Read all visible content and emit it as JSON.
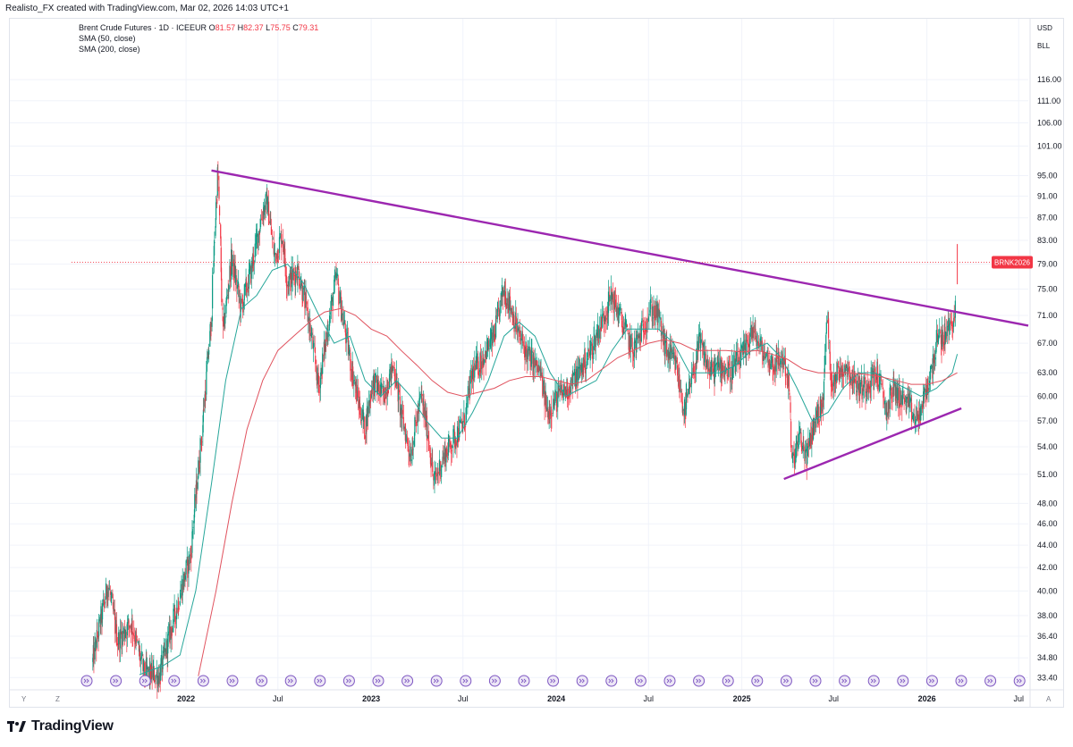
{
  "header": {
    "attribution": "Realisto_FX created with TradingView.com, Mar 02, 2026 14:03 UTC+1"
  },
  "legend": {
    "title": "Brent Crude Futures · 1D · ICEEUR",
    "open_label": "O",
    "open": "81.57",
    "high_label": "H",
    "high": "82.37",
    "low_label": "L",
    "low": "75.75",
    "close_label": "C",
    "close": "79.31",
    "sma1": "SMA (50, close)",
    "sma2": "SMA (200, close)"
  },
  "scale": {
    "currency": "USD",
    "unit": "BLL"
  },
  "price_badge": {
    "symbol": "BRNK2026",
    "color": "#f23645"
  },
  "bottom_toolbar": {
    "y": "Y",
    "z": "Z",
    "a": "A"
  },
  "brand": {
    "name": "TradingView"
  },
  "chart_data": {
    "type": "candlestick",
    "title": "Brent Crude Futures · 1D · ICEEUR",
    "y_scale": "log",
    "ylim": [
      32.8,
      122
    ],
    "y_ticks": [
      "116.00",
      "111.00",
      "106.00",
      "101.00",
      "95.00",
      "91.00",
      "87.00",
      "83.00",
      "79.00",
      "75.00",
      "71.00",
      "67.00",
      "63.00",
      "60.00",
      "57.00",
      "54.00",
      "51.00",
      "48.00",
      "46.00",
      "44.00",
      "42.00",
      "40.00",
      "38.00",
      "36.40",
      "34.80",
      "33.40"
    ],
    "x_ticks": [
      {
        "label": "2022",
        "bold": true,
        "date": "2022-01-01"
      },
      {
        "label": "Jul",
        "bold": false,
        "date": "2022-07-01"
      },
      {
        "label": "2023",
        "bold": true,
        "date": "2023-01-01"
      },
      {
        "label": "Jul",
        "bold": false,
        "date": "2023-07-01"
      },
      {
        "label": "2024",
        "bold": true,
        "date": "2024-01-01"
      },
      {
        "label": "Jul",
        "bold": false,
        "date": "2024-07-01"
      },
      {
        "label": "2025",
        "bold": true,
        "date": "2025-01-01"
      },
      {
        "label": "Jul",
        "bold": false,
        "date": "2025-07-01"
      },
      {
        "label": "2026",
        "bold": true,
        "date": "2026-01-01"
      },
      {
        "label": "Jul",
        "bold": false,
        "date": "2026-07-01"
      }
    ],
    "xlim": [
      "2021-05-20",
      "2026-07-20"
    ],
    "last_price": 79.31,
    "series": [
      {
        "name": "price",
        "color_up": "#089981",
        "color_down": "#f23645",
        "points": [
          [
            "2021-07-01",
            34.5
          ],
          [
            "2021-08-01",
            40.5
          ],
          [
            "2021-08-20",
            36
          ],
          [
            "2021-09-15",
            37.5
          ],
          [
            "2021-10-10",
            33.8
          ],
          [
            "2021-11-10",
            33.5
          ],
          [
            "2021-12-10",
            38
          ],
          [
            "2022-01-10",
            43
          ],
          [
            "2022-02-01",
            55
          ],
          [
            "2022-02-20",
            70
          ],
          [
            "2022-03-05",
            96
          ],
          [
            "2022-03-15",
            68
          ],
          [
            "2022-04-01",
            80
          ],
          [
            "2022-04-20",
            72
          ],
          [
            "2022-05-10",
            78
          ],
          [
            "2022-06-01",
            88
          ],
          [
            "2022-06-10",
            90
          ],
          [
            "2022-06-25",
            80
          ],
          [
            "2022-07-10",
            84
          ],
          [
            "2022-07-20",
            76
          ],
          [
            "2022-08-10",
            78
          ],
          [
            "2022-09-01",
            70
          ],
          [
            "2022-09-20",
            61
          ],
          [
            "2022-10-10",
            70
          ],
          [
            "2022-10-25",
            77
          ],
          [
            "2022-11-01",
            73
          ],
          [
            "2022-11-20",
            65
          ],
          [
            "2022-12-05",
            60
          ],
          [
            "2022-12-20",
            56
          ],
          [
            "2023-01-05",
            62
          ],
          [
            "2023-01-25",
            60
          ],
          [
            "2023-02-15",
            64
          ],
          [
            "2023-03-01",
            58
          ],
          [
            "2023-03-20",
            53
          ],
          [
            "2023-04-10",
            60
          ],
          [
            "2023-04-25",
            55
          ],
          [
            "2023-05-05",
            50
          ],
          [
            "2023-05-25",
            53
          ],
          [
            "2023-06-15",
            55
          ],
          [
            "2023-07-05",
            57
          ],
          [
            "2023-07-20",
            63
          ],
          [
            "2023-08-10",
            65
          ],
          [
            "2023-09-01",
            68
          ],
          [
            "2023-09-20",
            75
          ],
          [
            "2023-10-05",
            72
          ],
          [
            "2023-10-20",
            68
          ],
          [
            "2023-11-10",
            65
          ],
          [
            "2023-12-01",
            63
          ],
          [
            "2023-12-15",
            58
          ],
          [
            "2024-01-05",
            60
          ],
          [
            "2024-01-25",
            61
          ],
          [
            "2024-02-15",
            63
          ],
          [
            "2024-03-10",
            66
          ],
          [
            "2024-04-05",
            71
          ],
          [
            "2024-04-20",
            74
          ],
          [
            "2024-05-10",
            70
          ],
          [
            "2024-06-01",
            66
          ],
          [
            "2024-06-20",
            69
          ],
          [
            "2024-07-05",
            72
          ],
          [
            "2024-07-20",
            71
          ],
          [
            "2024-08-05",
            66
          ],
          [
            "2024-08-25",
            64
          ],
          [
            "2024-09-10",
            58
          ],
          [
            "2024-09-25",
            62
          ],
          [
            "2024-10-10",
            67
          ],
          [
            "2024-11-01",
            63
          ],
          [
            "2024-11-20",
            64
          ],
          [
            "2024-12-10",
            63
          ],
          [
            "2025-01-10",
            66
          ],
          [
            "2025-01-20",
            69
          ],
          [
            "2025-02-10",
            66
          ],
          [
            "2025-03-05",
            64
          ],
          [
            "2025-03-25",
            65
          ],
          [
            "2025-04-05",
            61
          ],
          [
            "2025-04-10",
            52
          ],
          [
            "2025-04-25",
            55
          ],
          [
            "2025-05-10",
            53
          ],
          [
            "2025-05-25",
            57
          ],
          [
            "2025-06-10",
            59
          ],
          [
            "2025-06-20",
            72
          ],
          [
            "2025-06-25",
            62
          ],
          [
            "2025-07-10",
            63
          ],
          [
            "2025-07-25",
            64
          ],
          [
            "2025-08-10",
            62
          ],
          [
            "2025-08-25",
            61
          ],
          [
            "2025-09-10",
            62
          ],
          [
            "2025-09-25",
            63
          ],
          [
            "2025-10-15",
            58
          ],
          [
            "2025-10-25",
            61
          ],
          [
            "2025-11-10",
            60
          ],
          [
            "2025-11-25",
            59
          ],
          [
            "2025-12-10",
            57
          ],
          [
            "2025-12-20",
            58
          ],
          [
            "2026-01-10",
            63
          ],
          [
            "2026-01-20",
            67
          ],
          [
            "2026-02-05",
            68
          ],
          [
            "2026-02-20",
            70
          ],
          [
            "2026-02-27",
            72
          ],
          [
            "2026-03-02",
            79.31
          ]
        ]
      },
      {
        "name": "SMA (50, close)",
        "color": "#26a69a",
        "points": [
          [
            "2021-10-01",
            33.6
          ],
          [
            "2021-11-15",
            34.2
          ],
          [
            "2021-12-20",
            35
          ],
          [
            "2022-01-20",
            40
          ],
          [
            "2022-02-20",
            50
          ],
          [
            "2022-03-20",
            62
          ],
          [
            "2022-04-20",
            72
          ],
          [
            "2022-05-20",
            74
          ],
          [
            "2022-06-20",
            78
          ],
          [
            "2022-07-20",
            79
          ],
          [
            "2022-08-20",
            76
          ],
          [
            "2022-09-20",
            71
          ],
          [
            "2022-10-20",
            67
          ],
          [
            "2022-11-20",
            68
          ],
          [
            "2022-12-20",
            62
          ],
          [
            "2023-01-20",
            60
          ],
          [
            "2023-02-20",
            62
          ],
          [
            "2023-03-20",
            60
          ],
          [
            "2023-04-20",
            57
          ],
          [
            "2023-05-20",
            55
          ],
          [
            "2023-06-20",
            55
          ],
          [
            "2023-07-20",
            58
          ],
          [
            "2023-08-20",
            62
          ],
          [
            "2023-09-20",
            68
          ],
          [
            "2023-10-20",
            70
          ],
          [
            "2023-11-20",
            68
          ],
          [
            "2023-12-20",
            63
          ],
          [
            "2024-01-20",
            60
          ],
          [
            "2024-02-20",
            61
          ],
          [
            "2024-03-20",
            62
          ],
          [
            "2024-04-20",
            66
          ],
          [
            "2024-05-20",
            69
          ],
          [
            "2024-06-20",
            69
          ],
          [
            "2024-07-20",
            69
          ],
          [
            "2024-08-20",
            67
          ],
          [
            "2024-09-20",
            63
          ],
          [
            "2024-10-20",
            63
          ],
          [
            "2024-11-20",
            63
          ],
          [
            "2024-12-20",
            64
          ],
          [
            "2025-01-20",
            66
          ],
          [
            "2025-02-20",
            67
          ],
          [
            "2025-03-20",
            65
          ],
          [
            "2025-04-20",
            61
          ],
          [
            "2025-05-20",
            57
          ],
          [
            "2025-06-20",
            58
          ],
          [
            "2025-07-20",
            61
          ],
          [
            "2025-08-20",
            63
          ],
          [
            "2025-09-20",
            63
          ],
          [
            "2025-10-20",
            62
          ],
          [
            "2025-11-20",
            61
          ],
          [
            "2025-12-20",
            60
          ],
          [
            "2026-01-20",
            61
          ],
          [
            "2026-02-20",
            63
          ],
          [
            "2026-03-02",
            65.5
          ]
        ]
      },
      {
        "name": "SMA (200, close)",
        "color": "#e0525e",
        "points": [
          [
            "2022-01-25",
            33.5
          ],
          [
            "2022-03-01",
            40
          ],
          [
            "2022-04-01",
            48
          ],
          [
            "2022-05-01",
            56
          ],
          [
            "2022-06-01",
            62
          ],
          [
            "2022-07-01",
            66
          ],
          [
            "2022-08-01",
            68
          ],
          [
            "2022-09-01",
            70
          ],
          [
            "2022-10-01",
            71.5
          ],
          [
            "2022-11-01",
            72
          ],
          [
            "2022-12-01",
            71
          ],
          [
            "2023-01-01",
            69
          ],
          [
            "2023-02-01",
            68
          ],
          [
            "2023-03-01",
            66
          ],
          [
            "2023-04-01",
            64
          ],
          [
            "2023-05-01",
            62
          ],
          [
            "2023-06-01",
            60.5
          ],
          [
            "2023-07-01",
            60
          ],
          [
            "2023-08-01",
            60.5
          ],
          [
            "2023-09-01",
            61
          ],
          [
            "2023-10-01",
            62
          ],
          [
            "2023-11-01",
            62.5
          ],
          [
            "2023-12-01",
            62.5
          ],
          [
            "2024-01-01",
            62
          ],
          [
            "2024-02-01",
            61.5
          ],
          [
            "2024-03-01",
            62
          ],
          [
            "2024-04-01",
            63.5
          ],
          [
            "2024-05-01",
            65
          ],
          [
            "2024-06-01",
            66
          ],
          [
            "2024-07-01",
            67
          ],
          [
            "2024-08-01",
            67.5
          ],
          [
            "2024-09-01",
            67
          ],
          [
            "2024-10-01",
            66
          ],
          [
            "2024-11-01",
            66
          ],
          [
            "2024-12-01",
            66
          ],
          [
            "2025-01-01",
            65.8
          ],
          [
            "2025-02-01",
            66
          ],
          [
            "2025-03-01",
            65.5
          ],
          [
            "2025-04-01",
            64.8
          ],
          [
            "2025-05-01",
            63.5
          ],
          [
            "2025-06-01",
            63
          ],
          [
            "2025-07-01",
            63
          ],
          [
            "2025-08-01",
            63
          ],
          [
            "2025-09-01",
            62.8
          ],
          [
            "2025-10-01",
            62.5
          ],
          [
            "2025-11-01",
            62
          ],
          [
            "2025-12-01",
            61.5
          ],
          [
            "2026-01-01",
            61.5
          ],
          [
            "2026-02-01",
            62
          ],
          [
            "2026-03-02",
            63
          ]
        ]
      }
    ],
    "trendlines": [
      {
        "color": "#9c27b0",
        "from": [
          "2022-02-20",
          96
        ],
        "to": [
          "2026-07-20",
          69.5
        ]
      },
      {
        "color": "#9c27b0",
        "from": [
          "2025-03-25",
          50.5
        ],
        "to": [
          "2026-03-10",
          58.5
        ]
      }
    ]
  }
}
